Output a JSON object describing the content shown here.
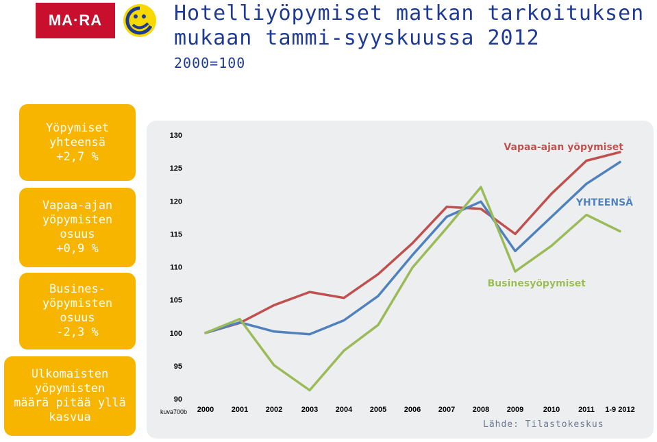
{
  "logo": {
    "text": "MA·RA"
  },
  "header": {
    "title": "Hotelliyöpymiset matkan tarkoituksen mukaan tammi-syyskuussa 2012",
    "subtitle": "2000=100"
  },
  "sidebar": [
    {
      "text": "Yöpymiset\nyhteensä\n+2,7 %"
    },
    {
      "text": "Vapaa-ajan\nyöpymisten\nosuus\n+0,9 %"
    },
    {
      "text": "Businesyöpymisten\nosuus\n-2,3 %",
      "display": "Busines-\nyöpymisten\nosuus\n-2,3 %"
    },
    {
      "text": "Ulkomaisten\nyöpymisten\nmäärä pitää yllä\nkasvua"
    }
  ],
  "chart_data": {
    "type": "line",
    "title": "",
    "xlabel": "",
    "ylabel": "",
    "ylim": [
      90,
      130
    ],
    "yticks": [
      130,
      125,
      120,
      115,
      110,
      105,
      100,
      95,
      90
    ],
    "categories": [
      "2000",
      "2001",
      "2002",
      "2003",
      "2004",
      "2005",
      "2006",
      "2007",
      "2008",
      "2009",
      "2010",
      "2011",
      "1-9 2012"
    ],
    "grid": false,
    "series": [
      {
        "name": "Vapaa-ajan yöpymiset",
        "color": "#c0504d",
        "values": [
          100,
          101.5,
          104.2,
          106.2,
          105.3,
          108.9,
          113.6,
          119.1,
          118.8,
          115.0,
          121.1,
          126.1,
          127.4
        ]
      },
      {
        "name": "YHTEENSÄ",
        "color": "#4f81bd",
        "values": [
          100,
          101.6,
          100.2,
          99.8,
          101.9,
          105.6,
          111.8,
          117.6,
          119.9,
          112.4,
          117.6,
          122.6,
          125.9
        ]
      },
      {
        "name": "Businesyöpymiset",
        "color": "#9bbb59",
        "values": [
          100,
          102.1,
          95.1,
          91.3,
          97.3,
          101.2,
          109.9,
          115.9,
          122.1,
          109.3,
          113.2,
          117.9,
          115.4
        ]
      }
    ],
    "labels": [
      {
        "text": "Vapaa-ajan yöpymiset",
        "series": 0
      },
      {
        "text": "YHTEENSÄ",
        "series": 1
      },
      {
        "text": "Businesyöpymiset",
        "series": 2
      }
    ],
    "left_note": "kuva700b"
  },
  "source": "Lähde: Tilastokeskus"
}
